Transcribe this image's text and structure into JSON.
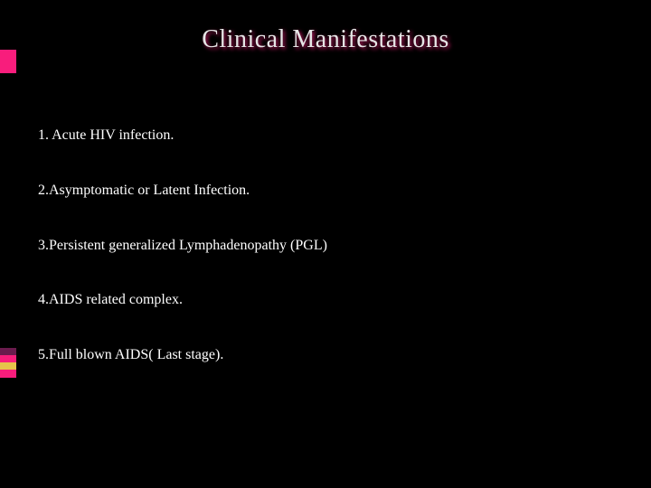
{
  "slide": {
    "background_color": "#000000",
    "title_color": "#e6e6e6",
    "title_shadow_color": "#f81d7c",
    "text_color": "#ffffff",
    "accent_colors": [
      "#6a1b4d",
      "#f81d7c",
      "#e6c34a",
      "#f81d7c"
    ],
    "title_fontsize": 28,
    "body_fontsize": 16,
    "font_family": "Georgia, serif"
  },
  "title": "Clinical Manifestations",
  "items": [
    "1.   Acute HIV infection.",
    "2.Asymptomatic or Latent Infection.",
    "3.Persistent generalized Lymphadenopathy (PGL)",
    "4.AIDS related complex.",
    "5.Full blown AIDS( Last stage)."
  ]
}
